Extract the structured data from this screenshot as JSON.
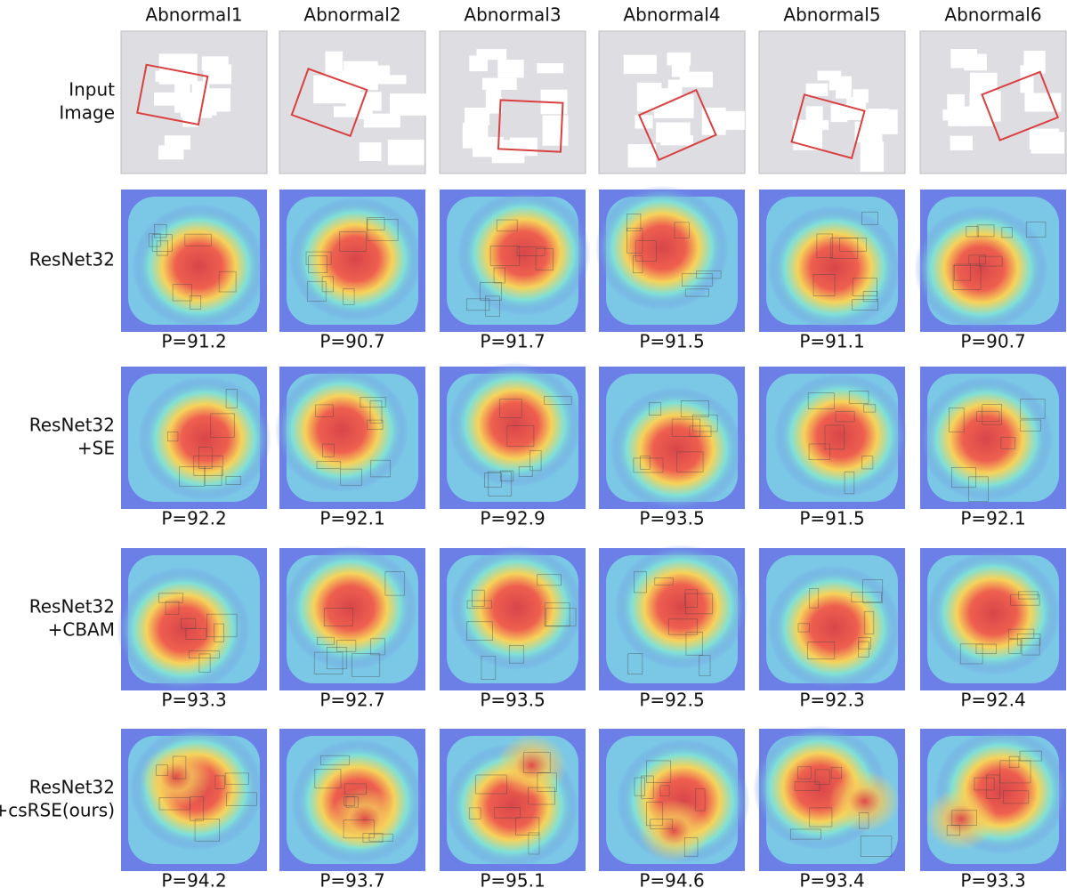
{
  "columns": [
    "Abnormal1",
    "Abnormal2",
    "Abnormal3",
    "Abnormal4",
    "Abnormal5",
    "Abnormal6"
  ],
  "rows": [
    {
      "label": [
        "Input",
        "Image"
      ]
    },
    {
      "label": [
        "ResNet32"
      ],
      "scores": [
        "P=91.2",
        "P=90.7",
        "P=91.7",
        "P=91.5",
        "P=91.1",
        "P=90.7"
      ]
    },
    {
      "label": [
        "ResNet32",
        "+SE"
      ],
      "scores": [
        "P=92.2",
        "P=92.1",
        "P=92.9",
        "P=93.5",
        "P=91.5",
        "P=92.1"
      ]
    },
    {
      "label": [
        "ResNet32",
        "+CBAM"
      ],
      "scores": [
        "P=93.3",
        "P=92.7",
        "P=93.5",
        "P=92.5",
        "P=92.3",
        "P=92.4"
      ]
    },
    {
      "label": [
        "ResNet32",
        "+csRSE(ours)"
      ],
      "scores": [
        "P=94.2",
        "P=93.7",
        "P=95.1",
        "P=94.6",
        "P=93.4",
        "P=93.3"
      ]
    }
  ]
}
